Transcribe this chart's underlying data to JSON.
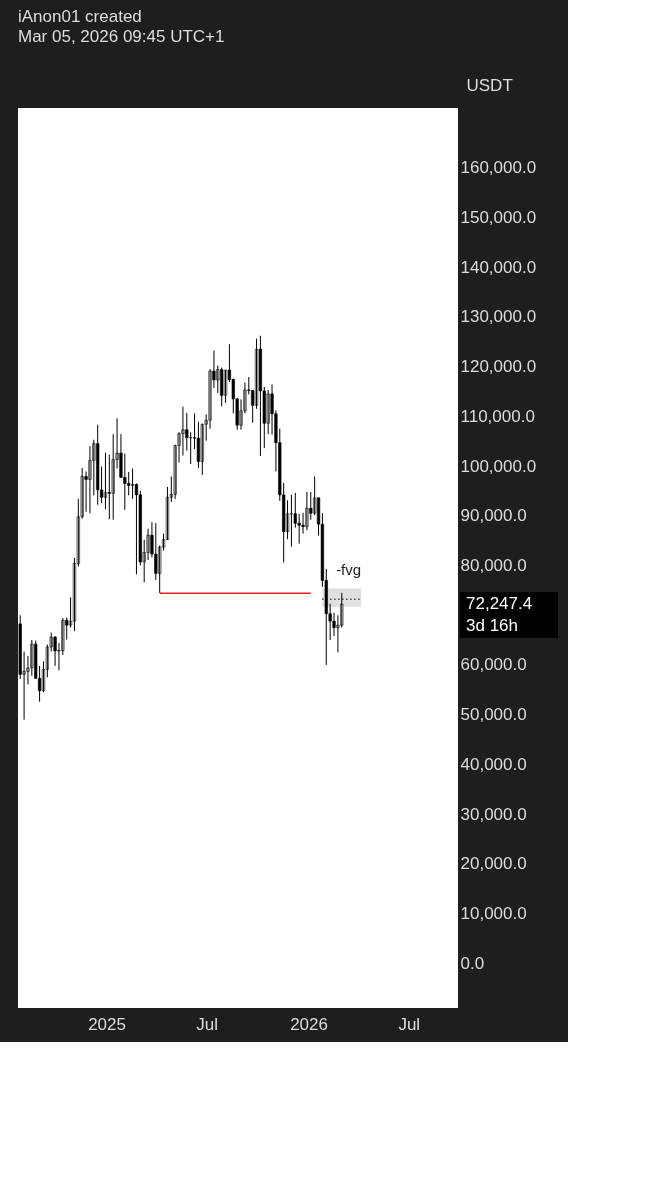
{
  "chart_data": {
    "type": "candlestick",
    "title": "iAnon01 created",
    "subtitle": "Mar 05, 2026 09:45 UTC+1",
    "ylabel": "USDT",
    "xlim": [
      "2024-07-25",
      "2026-09-28"
    ],
    "ylim": [
      -9000,
      172000
    ],
    "xticks": [
      {
        "value": "2025-01-01",
        "label": "2025"
      },
      {
        "value": "2025-07-01",
        "label": "Jul"
      },
      {
        "value": "2026-01-01",
        "label": "2026"
      },
      {
        "value": "2026-07-01",
        "label": "Jul"
      }
    ],
    "yticks": [
      {
        "value": 0,
        "label": "0.0"
      },
      {
        "value": 10000,
        "label": "10,000.0"
      },
      {
        "value": 20000,
        "label": "20,000.0"
      },
      {
        "value": 30000,
        "label": "30,000.0"
      },
      {
        "value": 40000,
        "label": "40,000.0"
      },
      {
        "value": 50000,
        "label": "50,000.0"
      },
      {
        "value": 60000,
        "label": "60,000.0"
      },
      {
        "value": 80000,
        "label": "80,000.0"
      },
      {
        "value": 90000,
        "label": "90,000.0"
      },
      {
        "value": 100000,
        "label": "100,000.0"
      },
      {
        "value": 110000,
        "label": "110,000.0"
      },
      {
        "value": 120000,
        "label": "120,000.0"
      },
      {
        "value": 130000,
        "label": "130,000.0"
      },
      {
        "value": 140000,
        "label": "140,000.0"
      },
      {
        "value": 150000,
        "label": "150,000.0"
      },
      {
        "value": 160000,
        "label": "160,000.0"
      }
    ],
    "grid": false,
    "series": [
      {
        "color": "#000000",
        "x": [
          "2024-07-29",
          "2024-08-05",
          "2024-08-12",
          "2024-08-19",
          "2024-08-26",
          "2024-09-02",
          "2024-09-09",
          "2024-09-16",
          "2024-09-23",
          "2024-09-30",
          "2024-10-07",
          "2024-10-14",
          "2024-10-21",
          "2024-10-28",
          "2024-11-04",
          "2024-11-11",
          "2024-11-18",
          "2024-11-25",
          "2024-12-02",
          "2024-12-09",
          "2024-12-16",
          "2024-12-23",
          "2024-12-30",
          "2025-01-06",
          "2025-01-13",
          "2025-01-20",
          "2025-01-27",
          "2025-02-03",
          "2025-02-10",
          "2025-02-17",
          "2025-02-24",
          "2025-03-03",
          "2025-03-10",
          "2025-03-17",
          "2025-03-24",
          "2025-03-31",
          "2025-04-07",
          "2025-04-14",
          "2025-04-21",
          "2025-04-28",
          "2025-05-05",
          "2025-05-12",
          "2025-05-19",
          "2025-05-26",
          "2025-06-02",
          "2025-06-09",
          "2025-06-16",
          "2025-06-23",
          "2025-06-30",
          "2025-07-07",
          "2025-07-14",
          "2025-07-21",
          "2025-07-28",
          "2025-08-04",
          "2025-08-11",
          "2025-08-18",
          "2025-08-25",
          "2025-09-01",
          "2025-09-08",
          "2025-09-15",
          "2025-09-22",
          "2025-09-29",
          "2025-10-06",
          "2025-10-13",
          "2025-10-20",
          "2025-10-27",
          "2025-11-03",
          "2025-11-10",
          "2025-11-17",
          "2025-11-24",
          "2025-12-01",
          "2025-12-08",
          "2025-12-15",
          "2025-12-22",
          "2025-12-29",
          "2026-01-05",
          "2026-01-12",
          "2026-01-19",
          "2026-01-26",
          "2026-02-02",
          "2026-02-09",
          "2026-02-16",
          "2026-02-23",
          "2026-03-02"
        ],
        "ohlc": [
          [
            68250,
            70000,
            57200,
            58100
          ],
          [
            58100,
            62700,
            49000,
            58700
          ],
          [
            58700,
            61800,
            56100,
            59400
          ],
          [
            59400,
            65000,
            57800,
            64200
          ],
          [
            64200,
            64900,
            57200,
            57300
          ],
          [
            57300,
            59800,
            52600,
            54800
          ],
          [
            54800,
            60700,
            54500,
            59100
          ],
          [
            59100,
            64100,
            57500,
            63600
          ],
          [
            63600,
            66500,
            62700,
            65600
          ],
          [
            65600,
            65800,
            59800,
            62800
          ],
          [
            62800,
            64400,
            58900,
            62900
          ],
          [
            62900,
            69400,
            62000,
            69000
          ],
          [
            69000,
            69500,
            65100,
            68000
          ],
          [
            68000,
            73600,
            67500,
            68800
          ],
          [
            68800,
            81500,
            66800,
            80400
          ],
          [
            80400,
            93400,
            79800,
            89800
          ],
          [
            89800,
            99600,
            89400,
            97900
          ],
          [
            97900,
            98900,
            90800,
            97300
          ],
          [
            97300,
            104000,
            90500,
            101100
          ],
          [
            101100,
            105300,
            94100,
            104500
          ],
          [
            104500,
            108300,
            92200,
            95200
          ],
          [
            95200,
            99900,
            92500,
            93700
          ],
          [
            93700,
            102700,
            91300,
            94700
          ],
          [
            94700,
            102300,
            89300,
            94500
          ],
          [
            94500,
            106400,
            89200,
            101300
          ],
          [
            101300,
            109600,
            99500,
            102600
          ],
          [
            102600,
            106400,
            97600,
            97700
          ],
          [
            97700,
            102500,
            91200,
            96500
          ],
          [
            96500,
            98800,
            94100,
            96100
          ],
          [
            96100,
            99500,
            93400,
            96300
          ],
          [
            96300,
            96500,
            78200,
            94200
          ],
          [
            94200,
            95000,
            80000,
            80700
          ],
          [
            80700,
            85200,
            76600,
            82600
          ],
          [
            82600,
            87400,
            81100,
            86100
          ],
          [
            86100,
            88700,
            81600,
            82300
          ],
          [
            82300,
            88500,
            77100,
            78400
          ],
          [
            78400,
            84000,
            74500,
            83700
          ],
          [
            83700,
            86400,
            83000,
            85200
          ],
          [
            85200,
            95800,
            85100,
            93700
          ],
          [
            93700,
            97900,
            92800,
            94300
          ],
          [
            94300,
            104300,
            93400,
            104100
          ],
          [
            104100,
            106800,
            100700,
            106500
          ],
          [
            106500,
            111900,
            102100,
            107300
          ],
          [
            107300,
            110700,
            103100,
            105700
          ],
          [
            105700,
            106800,
            100400,
            105700
          ],
          [
            105700,
            110600,
            103400,
            105600
          ],
          [
            105600,
            108900,
            99600,
            100900
          ],
          [
            100900,
            108500,
            98200,
            108400
          ],
          [
            108400,
            110400,
            105100,
            109200
          ],
          [
            109200,
            119500,
            107500,
            119100
          ],
          [
            119100,
            123200,
            115700,
            117300
          ],
          [
            117300,
            120200,
            114700,
            119400
          ],
          [
            119400,
            119800,
            112000,
            114200
          ],
          [
            114200,
            119300,
            112700,
            119300
          ],
          [
            119300,
            124500,
            116900,
            117400
          ],
          [
            117400,
            117600,
            110600,
            113500
          ],
          [
            113500,
            113700,
            107300,
            108200
          ],
          [
            108200,
            113400,
            107300,
            111100
          ],
          [
            111100,
            116800,
            110600,
            115300
          ],
          [
            115300,
            117900,
            114400,
            115200
          ],
          [
            115200,
            115300,
            108700,
            112200
          ],
          [
            112200,
            125600,
            111500,
            123500
          ],
          [
            123500,
            126200,
            102000,
            115100
          ],
          [
            115100,
            115900,
            103600,
            108600
          ],
          [
            108600,
            115300,
            106400,
            114500
          ],
          [
            114500,
            116400,
            106300,
            110500
          ],
          [
            110500,
            111200,
            98900,
            104700
          ],
          [
            104700,
            107500,
            93000,
            94200
          ],
          [
            94200,
            96600,
            80600,
            86800
          ],
          [
            86800,
            93100,
            85300,
            90400
          ],
          [
            90400,
            94200,
            83800,
            90400
          ],
          [
            90400,
            94600,
            87600,
            88500
          ],
          [
            88500,
            90400,
            84400,
            88100
          ],
          [
            88100,
            90600,
            86400,
            87800
          ],
          [
            87800,
            94800,
            87100,
            91500
          ],
          [
            91500,
            94800,
            89200,
            90500
          ],
          [
            90500,
            97900,
            90100,
            93600
          ],
          [
            93600,
            93700,
            86000,
            88300
          ],
          [
            88300,
            90500,
            75700,
            77000
          ],
          [
            77000,
            79300,
            60000,
            70300
          ],
          [
            70300,
            72300,
            65000,
            68800
          ],
          [
            68800,
            70500,
            65800,
            67500
          ],
          [
            67500,
            70000,
            62500,
            68000
          ],
          [
            68000,
            74500,
            67500,
            72247.4
          ]
        ]
      },
      {
        "type": "line",
        "color": "#e02020",
        "line_style": "solid",
        "x": [
          "2025-04-07",
          "2026-01-05"
        ],
        "values": [
          74400,
          74400
        ]
      },
      {
        "type": "line",
        "color": "#000000",
        "line_style": "dotted",
        "x": [
          "2026-01-26",
          "2026-04-06"
        ],
        "values": [
          73200,
          73200
        ],
        "lower": [
          71700,
          71700
        ],
        "upper": [
          75400,
          75400
        ]
      }
    ],
    "annotations": [
      "-fvg",
      "72,247.4",
      "3d 16h"
    ]
  }
}
